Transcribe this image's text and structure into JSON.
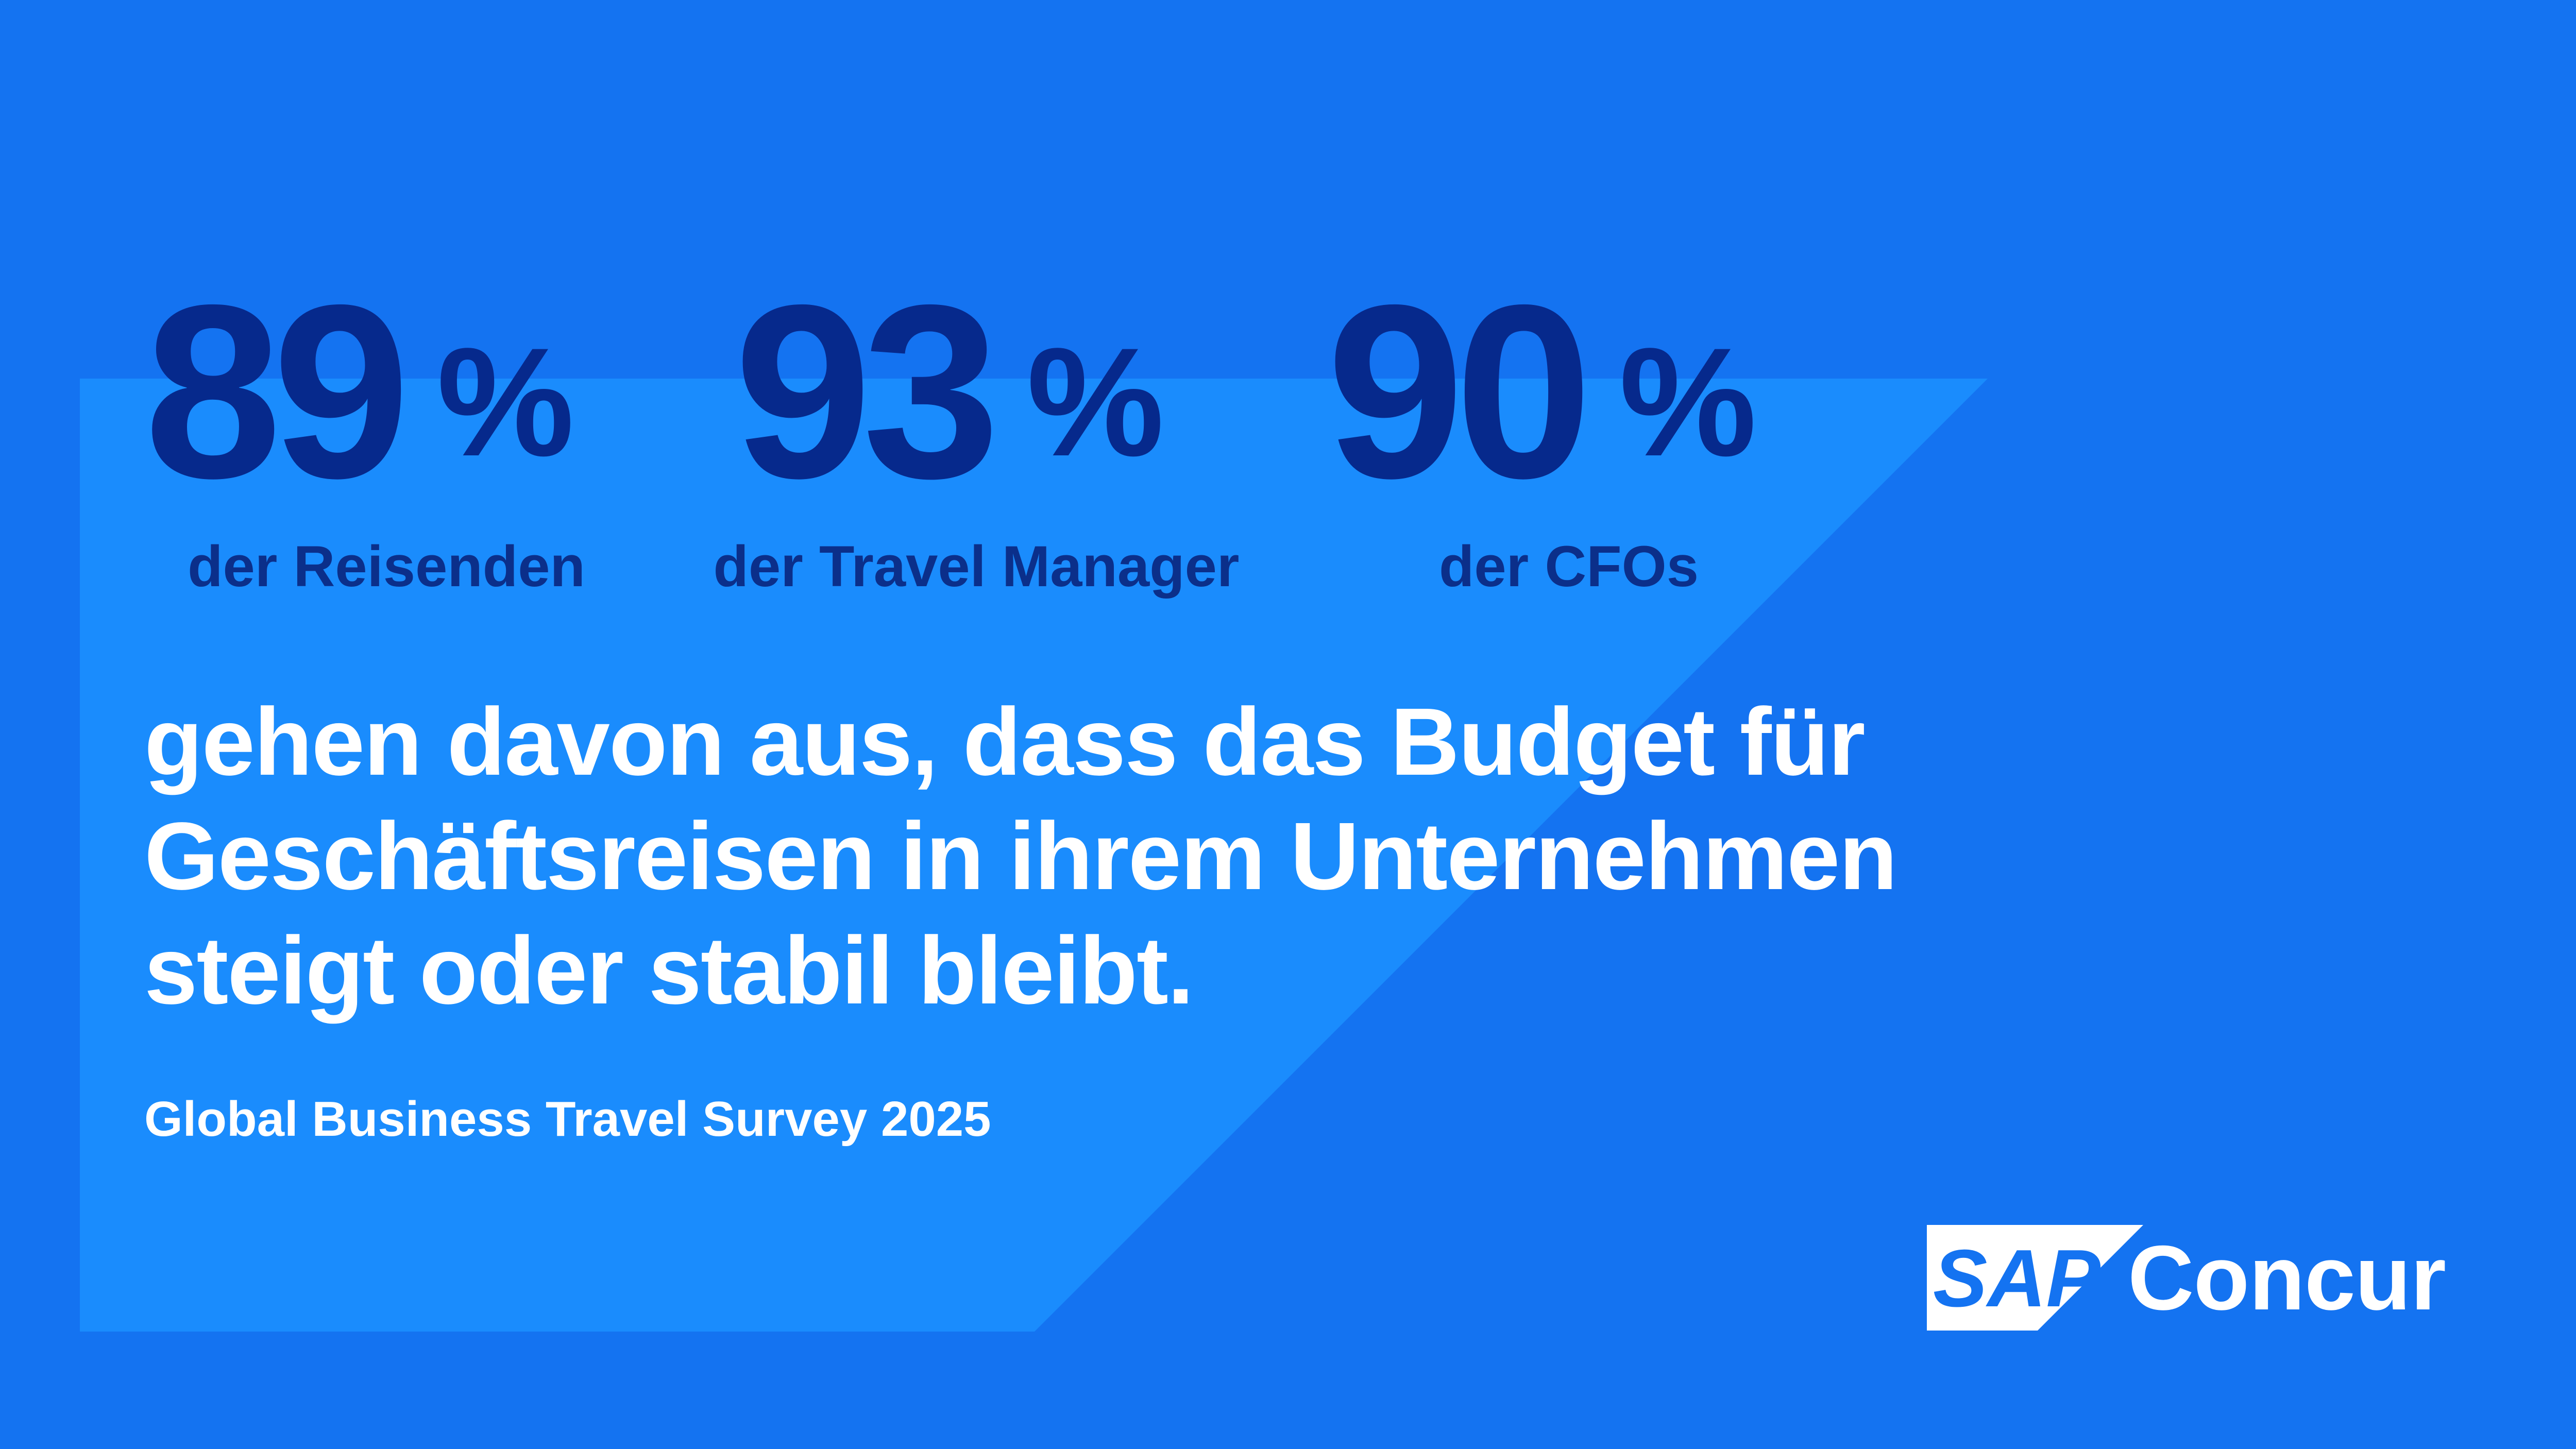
{
  "stats": [
    {
      "number": "89",
      "percent": "%",
      "label": "der Reisenden"
    },
    {
      "number": "93",
      "percent": "%",
      "label": "der Travel Manager"
    },
    {
      "number": "90",
      "percent": "%",
      "label": "der CFOs"
    }
  ],
  "headline": {
    "line1": "gehen davon aus, dass das Budget für",
    "line2": "Geschäftsreisen in ihrem Unternehmen",
    "line3": "steigt oder stabil bleibt."
  },
  "source": "Global Business Travel Survey 2025",
  "brand": {
    "mark_text": "SAP",
    "product": "Concur",
    "background_color": "#1473f1",
    "panel_color": "#1a8cfd",
    "stat_color": "#06298c",
    "text_color": "#ffffff"
  }
}
